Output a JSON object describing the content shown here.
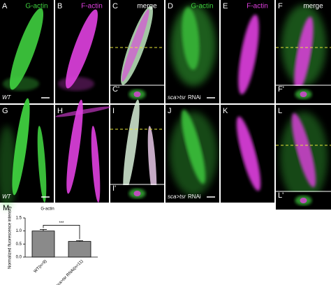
{
  "panels": [
    {
      "label": "A",
      "stain": "G-actin",
      "genotype": "WT"
    },
    {
      "label": "B",
      "stain": "F-actin"
    },
    {
      "label": "C",
      "stain": "merge",
      "inset": "C'"
    },
    {
      "label": "D",
      "stain": "G-actin",
      "genotype": "sca>tsr",
      "genotype_suffix": "RNAi"
    },
    {
      "label": "E",
      "stain": "F-actin"
    },
    {
      "label": "F",
      "stain": "merge",
      "inset": "F'"
    },
    {
      "label": "G",
      "genotype": "WT"
    },
    {
      "label": "H"
    },
    {
      "label": "I",
      "inset": "I'"
    },
    {
      "label": "J",
      "genotype": "sca>tsr",
      "genotype_suffix": "RNAi"
    },
    {
      "label": "K"
    },
    {
      "label": "L",
      "inset": "L'"
    }
  ],
  "chart_panel": "M",
  "chart_data": {
    "type": "bar",
    "title": "G-actin",
    "ylabel": "Normalized fluorescence intensity",
    "categories": [
      "WT(n=9)",
      "sca>tsr RNAi(n=11)"
    ],
    "values": [
      1.0,
      0.6
    ],
    "errors": [
      0.06,
      0.03
    ],
    "color": "#8a8a8a",
    "ylim": [
      0,
      1.5
    ],
    "yticks": [
      {
        "value": 0,
        "label": "0.0"
      },
      {
        "value": 0.5,
        "label": "0.5"
      },
      {
        "value": 1,
        "label": "1.0"
      },
      {
        "value": 1.5,
        "label": "1.5"
      }
    ],
    "significance": "***"
  }
}
